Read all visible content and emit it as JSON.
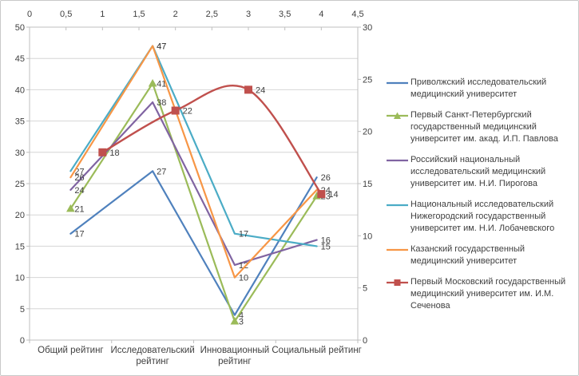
{
  "chart_data": {
    "type": "line",
    "title": "",
    "grid": "horizontal",
    "legend_position": "right",
    "categories": [
      "Общий рейтинг",
      "Исследовательский рейтинг",
      "Инновационный рейтинг",
      "Социальный рейтинг"
    ],
    "primary_y_axis": {
      "min": 0,
      "max": 50,
      "step": 5,
      "labels": [
        "0",
        "5",
        "10",
        "15",
        "20",
        "25",
        "30",
        "35",
        "40",
        "45",
        "50"
      ]
    },
    "secondary_y_axis": {
      "min": 0,
      "max": 30,
      "step": 5,
      "labels": [
        "0",
        "5",
        "10",
        "15",
        "20",
        "25",
        "30"
      ]
    },
    "secondary_x_axis": {
      "min": 0,
      "max": 4.5,
      "step": 0.5,
      "labels": [
        "0",
        "0,5",
        "1",
        "1,5",
        "2",
        "2,5",
        "3",
        "3,5",
        "4",
        "4,5"
      ]
    },
    "series": [
      {
        "name": "Приволжский исследовательский медицинский университет",
        "color": "#4F81BD",
        "marker": "none",
        "axis": "primary",
        "smooth": false,
        "values": [
          17,
          27,
          4,
          26
        ]
      },
      {
        "name": "Первый Санкт-Петербургский государственный медицинский университет им. акад. И.П. Павлова",
        "color": "#9BBB59",
        "marker": "triangle",
        "axis": "primary",
        "smooth": false,
        "values": [
          21,
          41,
          3,
          23
        ]
      },
      {
        "name": "Российский национальный исследовательский медицинский университет им. Н.И. Пирогова",
        "color": "#8064A2",
        "marker": "none",
        "axis": "primary",
        "smooth": false,
        "values": [
          24,
          38,
          12,
          16
        ]
      },
      {
        "name": "Национальный исследовательский Нижегородский государственный университет им. Н.И. Лобачевского",
        "color": "#4BACC6",
        "marker": "none",
        "axis": "primary",
        "smooth": false,
        "values": [
          27,
          47,
          17,
          15
        ]
      },
      {
        "name": "Казанский государственный медицинский университет",
        "color": "#F79646",
        "marker": "none",
        "axis": "primary",
        "smooth": false,
        "values": [
          26,
          47,
          10,
          24
        ]
      },
      {
        "name": "Первый Московский государственный медицинский университет им. И.М. Сеченова",
        "color": "#C0504D",
        "marker": "square",
        "axis": "secondary",
        "smooth": true,
        "x": [
          1,
          2,
          3,
          4
        ],
        "values": [
          18,
          22,
          24,
          14
        ]
      }
    ]
  },
  "colors": {
    "background": "#FFFFFF",
    "border": "#C9C9C9",
    "gridline": "#D6D6D6",
    "axis": "#BFBFBF",
    "text": "#3F3F3F"
  }
}
